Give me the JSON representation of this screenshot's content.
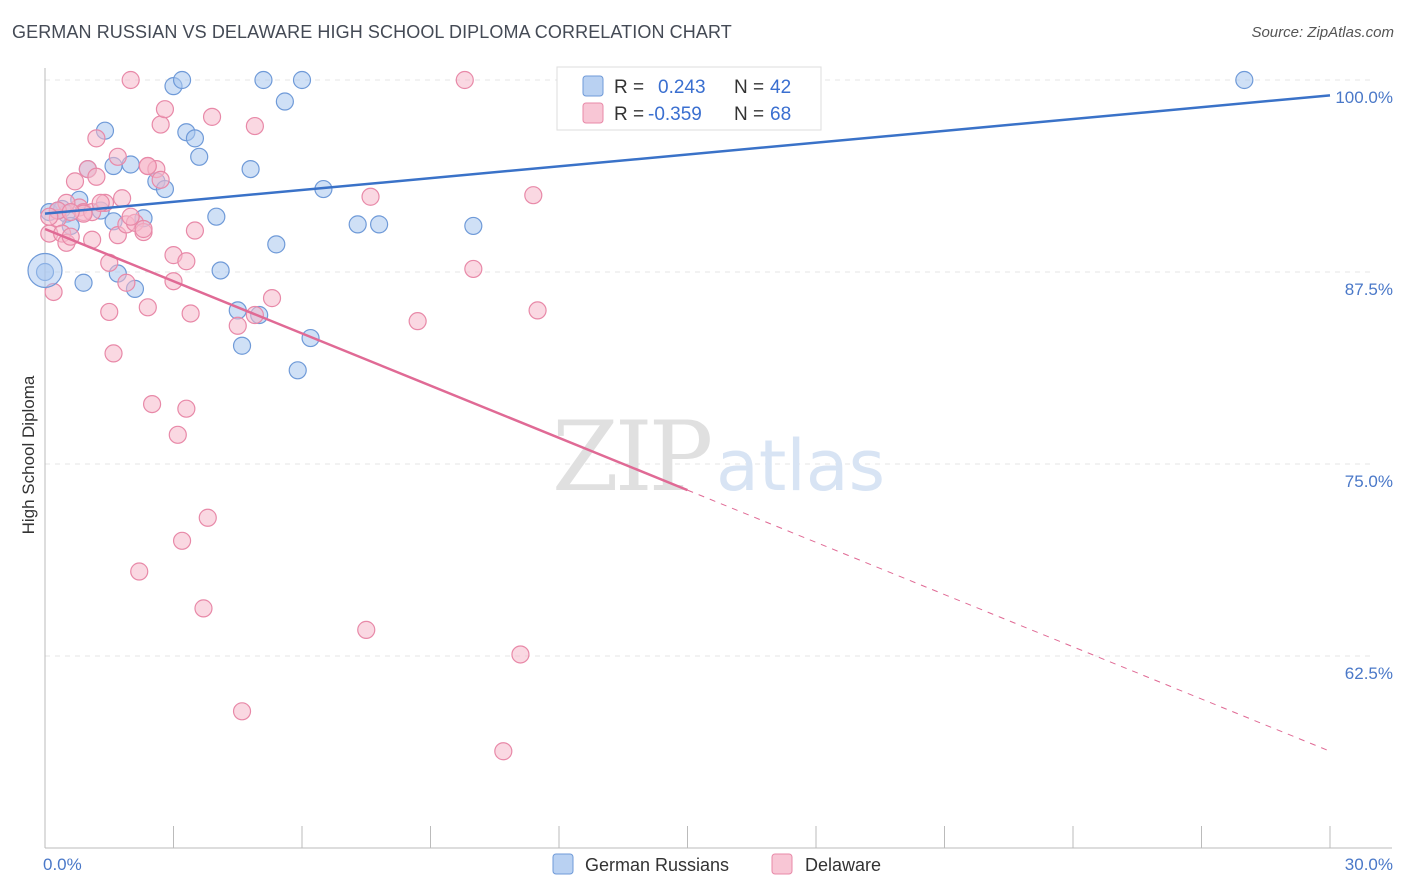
{
  "title": "GERMAN RUSSIAN VS DELAWARE HIGH SCHOOL DIPLOMA CORRELATION CHART",
  "source": "Source: ZipAtlas.com",
  "watermark": {
    "zip": "ZIP",
    "atlas": "atlas"
  },
  "legend": {
    "rows": [
      {
        "r_label": "R =",
        "r_value": "0.243",
        "n_label": "N =",
        "n_value": "42",
        "color": "#a8c6ef",
        "stroke": "#6f9ad8"
      },
      {
        "r_label": "R =",
        "r_value": "-0.359",
        "n_label": "N =",
        "n_value": "68",
        "color": "#f6b8cb",
        "stroke": "#e889a8"
      }
    ]
  },
  "bottom_legend": [
    {
      "label": "German Russians",
      "color": "#a8c6ef",
      "stroke": "#6f9ad8"
    },
    {
      "label": "Delaware",
      "color": "#f6b8cb",
      "stroke": "#e889a8"
    }
  ],
  "chart_data": {
    "type": "scatter",
    "title": "GERMAN RUSSIAN VS DELAWARE HIGH SCHOOL DIPLOMA CORRELATION CHART",
    "xlabel": "",
    "ylabel": "High School Diploma",
    "xlim": [
      0,
      30
    ],
    "ylim": [
      50,
      100
    ],
    "x_tick_labels": [
      "0.0%",
      "30.0%"
    ],
    "y_ticks": [
      100,
      87.5,
      75,
      62.5
    ],
    "y_tick_labels": [
      "100.0%",
      "87.5%",
      "75.0%",
      "62.5%"
    ],
    "grid": true,
    "legend_position": "top-center",
    "series": [
      {
        "name": "German Russians",
        "color": "#a8c6ef",
        "stroke": "#6f9ad8",
        "line_color": "#3a72c8",
        "trend": {
          "x": [
            0,
            30
          ],
          "y": [
            91.3,
            99.0
          ]
        },
        "points": [
          [
            0.1,
            91.4
          ],
          [
            0.4,
            91.6
          ],
          [
            0.5,
            91.3
          ],
          [
            0.6,
            90.5
          ],
          [
            0.8,
            92.2
          ],
          [
            1.0,
            94.2
          ],
          [
            1.3,
            91.5
          ],
          [
            1.4,
            96.7
          ],
          [
            1.6,
            94.4
          ],
          [
            1.6,
            90.8
          ],
          [
            1.7,
            87.4
          ],
          [
            2.1,
            86.4
          ],
          [
            2.3,
            91.0
          ],
          [
            2.6,
            93.4
          ],
          [
            2.8,
            92.9
          ],
          [
            3.0,
            99.6
          ],
          [
            3.2,
            100.0
          ],
          [
            3.3,
            96.6
          ],
          [
            3.5,
            96.2
          ],
          [
            3.6,
            95.0
          ],
          [
            4.0,
            91.1
          ],
          [
            4.1,
            87.6
          ],
          [
            4.5,
            85.0
          ],
          [
            4.6,
            82.7
          ],
          [
            4.8,
            94.2
          ],
          [
            5.0,
            84.7
          ],
          [
            5.1,
            100.0
          ],
          [
            5.4,
            89.3
          ],
          [
            5.6,
            98.6
          ],
          [
            5.9,
            81.1
          ],
          [
            6.0,
            100.0
          ],
          [
            6.2,
            83.2
          ],
          [
            6.5,
            92.9
          ],
          [
            7.3,
            90.6
          ],
          [
            7.8,
            90.6
          ],
          [
            10.0,
            90.5
          ],
          [
            12.4,
            100.0
          ],
          [
            28.0,
            100.0
          ],
          [
            0.0,
            87.5
          ],
          [
            0.9,
            86.8
          ],
          [
            2.0,
            94.5
          ],
          [
            0.3,
            91.5
          ]
        ]
      },
      {
        "name": "Delaware",
        "color": "#f6b8cb",
        "stroke": "#e889a8",
        "line_color": "#e06a95",
        "trend": {
          "x": [
            0,
            15
          ],
          "y": [
            90.3,
            73.3
          ]
        },
        "trend_dashed": {
          "x": [
            15,
            30
          ],
          "y": [
            73.3,
            56.3
          ]
        },
        "points": [
          [
            0.1,
            90.0
          ],
          [
            0.2,
            86.2
          ],
          [
            0.3,
            91.0
          ],
          [
            0.4,
            90.0
          ],
          [
            0.5,
            89.4
          ],
          [
            0.6,
            89.8
          ],
          [
            0.7,
            93.4
          ],
          [
            0.8,
            91.7
          ],
          [
            0.9,
            91.4
          ],
          [
            1.0,
            94.2
          ],
          [
            1.1,
            91.4
          ],
          [
            1.2,
            96.2
          ],
          [
            1.2,
            93.7
          ],
          [
            1.4,
            92.0
          ],
          [
            1.5,
            88.1
          ],
          [
            1.5,
            84.9
          ],
          [
            1.6,
            82.2
          ],
          [
            1.7,
            89.9
          ],
          [
            1.7,
            95.0
          ],
          [
            1.8,
            92.3
          ],
          [
            1.9,
            90.6
          ],
          [
            1.9,
            86.8
          ],
          [
            2.0,
            100.0
          ],
          [
            2.1,
            90.7
          ],
          [
            2.2,
            68.0
          ],
          [
            2.3,
            90.1
          ],
          [
            2.4,
            94.4
          ],
          [
            2.4,
            85.2
          ],
          [
            2.5,
            78.9
          ],
          [
            2.6,
            94.2
          ],
          [
            2.7,
            93.5
          ],
          [
            2.7,
            97.1
          ],
          [
            2.8,
            98.1
          ],
          [
            3.0,
            86.9
          ],
          [
            3.0,
            88.6
          ],
          [
            3.1,
            76.9
          ],
          [
            3.2,
            70.0
          ],
          [
            3.3,
            78.6
          ],
          [
            3.3,
            88.2
          ],
          [
            3.4,
            84.8
          ],
          [
            3.5,
            90.2
          ],
          [
            3.7,
            65.6
          ],
          [
            3.8,
            71.5
          ],
          [
            3.9,
            97.6
          ],
          [
            4.5,
            84.0
          ],
          [
            4.6,
            58.9
          ],
          [
            4.9,
            84.7
          ],
          [
            4.9,
            97.0
          ],
          [
            5.3,
            85.8
          ],
          [
            7.5,
            64.2
          ],
          [
            7.6,
            92.4
          ],
          [
            8.7,
            84.3
          ],
          [
            9.8,
            100.0
          ],
          [
            10.0,
            87.7
          ],
          [
            10.7,
            56.3
          ],
          [
            11.1,
            62.6
          ],
          [
            11.4,
            92.5
          ],
          [
            11.5,
            85.0
          ],
          [
            0.5,
            92.0
          ],
          [
            1.3,
            92.0
          ],
          [
            2.0,
            91.1
          ],
          [
            2.3,
            90.3
          ],
          [
            0.9,
            91.3
          ],
          [
            1.1,
            89.6
          ],
          [
            0.3,
            91.5
          ],
          [
            0.1,
            91.1
          ],
          [
            2.4,
            94.4
          ],
          [
            0.6,
            91.4
          ]
        ]
      }
    ]
  }
}
